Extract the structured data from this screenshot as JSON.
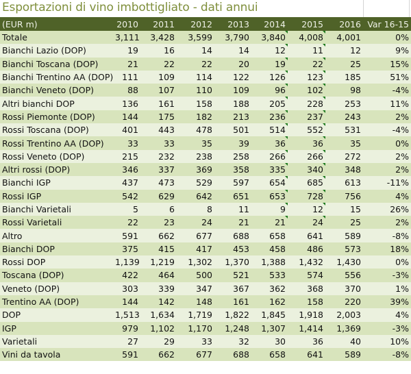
{
  "title": "Esportazioni di vino imbottigliato - dati annui",
  "table": {
    "columns": [
      "(EUR m)",
      "2010",
      "2011",
      "2012",
      "2013",
      "2014",
      "2015",
      "2016",
      "Var 16-15"
    ],
    "rows": [
      {
        "label": "Totale",
        "values": [
          "3,111",
          "3,428",
          "3,599",
          "3,790",
          "3,840",
          "4,008",
          "4,001",
          "0%"
        ],
        "flagged": true
      },
      {
        "label": "Bianchi Lazio (DOP)",
        "values": [
          "19",
          "16",
          "14",
          "14",
          "12",
          "11",
          "12",
          "9%"
        ],
        "flagged": true
      },
      {
        "label": "Bianchi Toscana (DOP)",
        "values": [
          "21",
          "22",
          "22",
          "20",
          "19",
          "22",
          "25",
          "15%"
        ],
        "flagged": true
      },
      {
        "label": "Bianchi Trentino AA (DOP)",
        "values": [
          "111",
          "109",
          "114",
          "122",
          "126",
          "123",
          "185",
          "51%"
        ],
        "flagged": true
      },
      {
        "label": "Bianchi Veneto (DOP)",
        "values": [
          "88",
          "107",
          "110",
          "109",
          "96",
          "102",
          "98",
          "-4%"
        ],
        "flagged": true
      },
      {
        "label": "Altri bianchi DOP",
        "values": [
          "136",
          "161",
          "158",
          "188",
          "205",
          "228",
          "253",
          "11%"
        ],
        "flagged": true
      },
      {
        "label": "Rossi Piemonte (DOP)",
        "values": [
          "144",
          "175",
          "182",
          "213",
          "236",
          "237",
          "243",
          "2%"
        ],
        "flagged": true
      },
      {
        "label": "Rossi Toscana (DOP)",
        "values": [
          "401",
          "443",
          "478",
          "501",
          "514",
          "552",
          "531",
          "-4%"
        ],
        "flagged": true
      },
      {
        "label": "Rossi Trentino AA (DOP)",
        "values": [
          "33",
          "33",
          "35",
          "39",
          "36",
          "36",
          "35",
          "0%"
        ],
        "flagged": true
      },
      {
        "label": "Rossi Veneto (DOP)",
        "values": [
          "215",
          "232",
          "238",
          "258",
          "266",
          "266",
          "272",
          "2%"
        ],
        "flagged": true
      },
      {
        "label": "Altri rossi (DOP)",
        "values": [
          "346",
          "337",
          "369",
          "358",
          "335",
          "340",
          "348",
          "2%"
        ],
        "flagged": true
      },
      {
        "label": "Bianchi IGP",
        "values": [
          "437",
          "473",
          "529",
          "597",
          "654",
          "685",
          "613",
          "-11%"
        ],
        "flagged": true
      },
      {
        "label": "Rossi IGP",
        "values": [
          "542",
          "629",
          "642",
          "651",
          "653",
          "728",
          "756",
          "4%"
        ],
        "flagged": true
      },
      {
        "label": "Bianchi Varietali",
        "values": [
          "5",
          "6",
          "8",
          "11",
          "9",
          "12",
          "15",
          "26%"
        ],
        "flagged": true
      },
      {
        "label": "Rossi Varietali",
        "values": [
          "22",
          "23",
          "24",
          "21",
          "21",
          "24",
          "25",
          "2%"
        ],
        "flagged": true
      },
      {
        "label": "Altro",
        "values": [
          "591",
          "662",
          "677",
          "688",
          "658",
          "641",
          "589",
          "-8%"
        ],
        "flagged": false
      },
      {
        "label": "Bianchi DOP",
        "values": [
          "375",
          "415",
          "417",
          "453",
          "458",
          "486",
          "573",
          "18%"
        ],
        "flagged": false
      },
      {
        "label": "Rossi DOP",
        "values": [
          "1,139",
          "1,219",
          "1,302",
          "1,370",
          "1,388",
          "1,432",
          "1,430",
          "0%"
        ],
        "flagged": false
      },
      {
        "label": "Toscana (DOP)",
        "values": [
          "422",
          "464",
          "500",
          "521",
          "533",
          "574",
          "556",
          "-3%"
        ],
        "flagged": false
      },
      {
        "label": "Veneto (DOP)",
        "values": [
          "303",
          "339",
          "347",
          "367",
          "362",
          "368",
          "370",
          "1%"
        ],
        "flagged": false
      },
      {
        "label": "Trentino AA (DOP)",
        "values": [
          "144",
          "142",
          "148",
          "161",
          "162",
          "158",
          "220",
          "39%"
        ],
        "flagged": false
      },
      {
        "label": "DOP",
        "values": [
          "1,513",
          "1,634",
          "1,719",
          "1,822",
          "1,845",
          "1,918",
          "2,003",
          "4%"
        ],
        "flagged": false
      },
      {
        "label": "IGP",
        "values": [
          "979",
          "1,102",
          "1,170",
          "1,248",
          "1,307",
          "1,414",
          "1,369",
          "-3%"
        ],
        "flagged": false
      },
      {
        "label": "Varietali",
        "values": [
          "27",
          "29",
          "33",
          "32",
          "30",
          "36",
          "40",
          "10%"
        ],
        "flagged": false
      },
      {
        "label": "Vini da tavola",
        "values": [
          "591",
          "662",
          "677",
          "688",
          "658",
          "641",
          "589",
          "-8%"
        ],
        "flagged": false
      }
    ]
  },
  "colors": {
    "header_bg": "#4f6228",
    "row_dark": "#d8e4bc",
    "row_light": "#ebf1de",
    "title_text": "#7f8f3c",
    "flag_marker": "#1e7a1e"
  }
}
